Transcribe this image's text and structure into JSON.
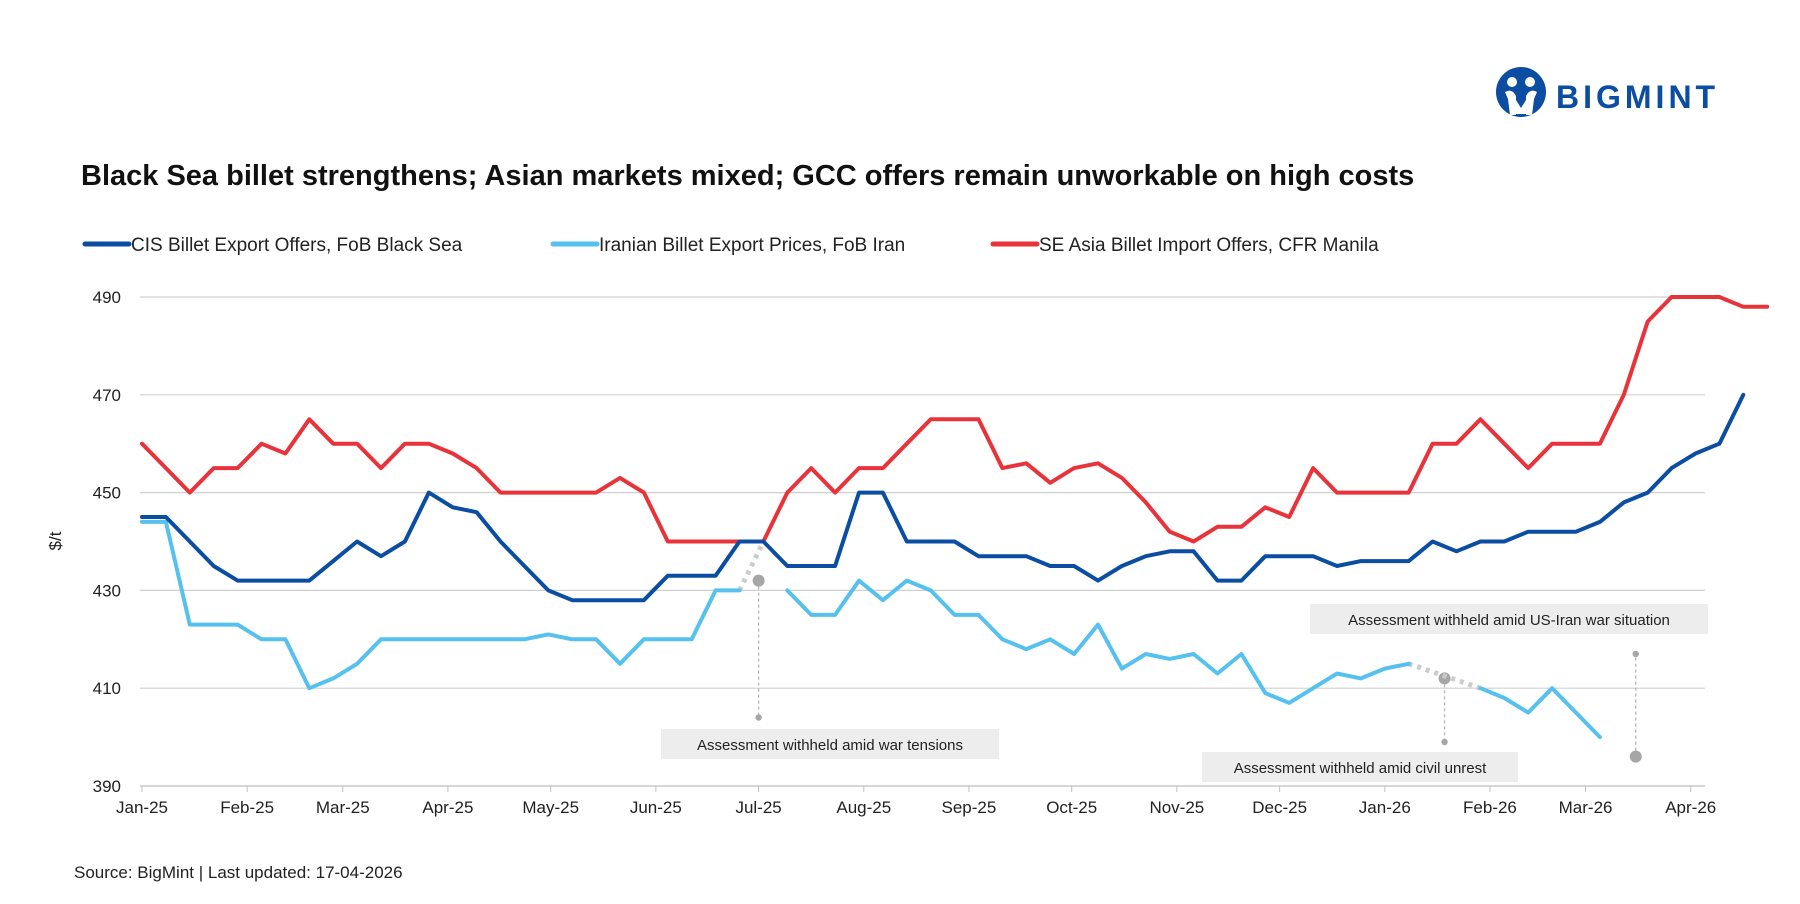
{
  "brand": {
    "name": "BIGMINT",
    "color": "#0b4da2"
  },
  "source": "Source: BigMint | Last updated: 17-04-2026",
  "chart_data": {
    "type": "line",
    "title": "Black Sea billet strengthens; Asian markets mixed; GCC offers remain unworkable on high costs",
    "ylabel": "$/t",
    "ylim": [
      390,
      490
    ],
    "yticks": [
      390,
      410,
      430,
      450,
      470,
      490
    ],
    "grid": true,
    "legend_position": "top",
    "x_unit": "weekly assessments, Jan-25 to Apr-26",
    "x_ticks": [
      {
        "label": "Jan-25",
        "week": 0
      },
      {
        "label": "Feb-25",
        "week": 4.4
      },
      {
        "label": "Mar-25",
        "week": 8.4
      },
      {
        "label": "Apr-25",
        "week": 12.8
      },
      {
        "label": "May-25",
        "week": 17.1
      },
      {
        "label": "Jun-25",
        "week": 21.5
      },
      {
        "label": "Jul-25",
        "week": 25.8
      },
      {
        "label": "Aug-25",
        "week": 30.2
      },
      {
        "label": "Sep-25",
        "week": 34.6
      },
      {
        "label": "Oct-25",
        "week": 38.9
      },
      {
        "label": "Nov-25",
        "week": 43.3
      },
      {
        "label": "Dec-25",
        "week": 47.6
      },
      {
        "label": "Jan-26",
        "week": 52.0
      },
      {
        "label": "Feb-26",
        "week": 56.4
      },
      {
        "label": "Mar-26",
        "week": 60.4
      },
      {
        "label": "Apr-26",
        "week": 64.8
      }
    ],
    "series": [
      {
        "name": "CIS Billet Export Offers, FoB Black Sea",
        "color": "#0b4da2",
        "values": [
          445,
          445,
          440,
          435,
          432,
          432,
          432,
          432,
          436,
          440,
          437,
          440,
          450,
          447,
          446,
          440,
          435,
          430,
          428,
          428,
          428,
          428,
          433,
          433,
          433,
          440,
          440,
          435,
          435,
          435,
          450,
          450,
          440,
          440,
          440,
          437,
          437,
          437,
          435,
          435,
          432,
          435,
          437,
          438,
          438,
          432,
          432,
          437,
          437,
          437,
          435,
          436,
          436,
          436,
          440,
          438,
          440,
          440,
          442,
          442,
          442,
          444,
          448,
          450,
          455,
          458,
          460,
          470
        ]
      },
      {
        "name": "Iranian Billet Export Prices, FoB Iran",
        "color": "#56c1ef",
        "values": [
          444,
          444,
          423,
          423,
          423,
          420,
          420,
          410,
          412,
          415,
          420,
          420,
          420,
          420,
          420,
          420,
          420,
          421,
          420,
          420,
          415,
          420,
          420,
          420,
          430,
          430,
          null,
          430,
          425,
          425,
          432,
          428,
          432,
          430,
          425,
          425,
          420,
          418,
          420,
          417,
          423,
          414,
          417,
          416,
          417,
          413,
          417,
          409,
          407,
          410,
          413,
          412,
          414,
          415,
          null,
          null,
          410,
          408,
          405,
          410,
          405,
          400
        ]
      },
      {
        "name": "SE Asia Billet Import Offers, CFR Manila",
        "color": "#e8333a",
        "values": [
          460,
          455,
          450,
          455,
          455,
          460,
          458,
          465,
          460,
          460,
          455,
          460,
          460,
          458,
          455,
          450,
          450,
          450,
          450,
          450,
          453,
          450,
          440,
          440,
          440,
          440,
          440,
          450,
          455,
          450,
          455,
          455,
          460,
          465,
          465,
          465,
          455,
          456,
          452,
          455,
          456,
          453,
          448,
          442,
          440,
          443,
          443,
          447,
          445,
          455,
          450,
          450,
          450,
          450,
          460,
          460,
          465,
          460,
          455,
          460,
          460,
          460,
          470,
          485,
          490,
          490,
          490,
          488,
          488
        ]
      }
    ],
    "gaps": [
      {
        "from": [
          25,
          430
        ],
        "to": [
          26,
          440
        ],
        "color": "#cccccc"
      },
      {
        "from": [
          53,
          415
        ],
        "to": [
          56,
          410
        ],
        "color": "#cccccc"
      }
    ],
    "annotations": [
      {
        "text": "Assessment withheld amid  war tensions",
        "dot": [
          25.8,
          432
        ],
        "dot_size": 10,
        "stem_end": [
          25.8,
          404
        ]
      },
      {
        "text": "Assessment withheld amid civil unrest",
        "dot": [
          54.5,
          412
        ],
        "dot_size": 10,
        "stem_end": [
          54.5,
          399
        ]
      },
      {
        "text": "Assessment withheld amid US-Iran war situation",
        "dot": [
          62.5,
          396
        ],
        "dot_size": 10,
        "stem_end": [
          62.5,
          417
        ]
      }
    ]
  }
}
